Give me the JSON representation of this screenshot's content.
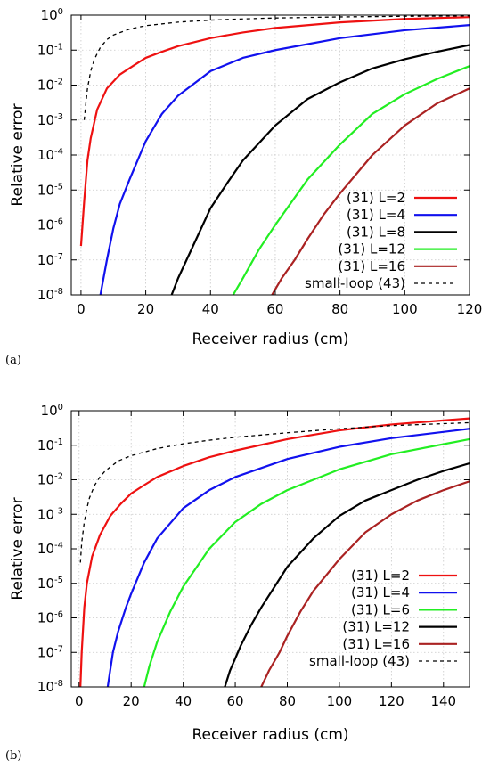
{
  "chart_data": [
    {
      "type": "line",
      "panel_label": "(a)",
      "xlabel": "Receiver radius (cm)",
      "ylabel": "Relative error",
      "xlim": [
        -3,
        120
      ],
      "ylim": [
        1e-08,
        1
      ],
      "yscale": "log",
      "xticks": [
        "0",
        "20",
        "40",
        "60",
        "80",
        "100",
        "120"
      ],
      "xtick_values": [
        0,
        20,
        40,
        60,
        80,
        100,
        120
      ],
      "yticks": [
        {
          "value": 1e-08,
          "base": "10",
          "exp": "-8"
        },
        {
          "value": 1e-07,
          "base": "10",
          "exp": "-7"
        },
        {
          "value": 1e-06,
          "base": "10",
          "exp": "-6"
        },
        {
          "value": 1e-05,
          "base": "10",
          "exp": "-5"
        },
        {
          "value": 0.0001,
          "base": "10",
          "exp": "-4"
        },
        {
          "value": 0.001,
          "base": "10",
          "exp": "-3"
        },
        {
          "value": 0.01,
          "base": "10",
          "exp": "-2"
        },
        {
          "value": 0.1,
          "base": "10",
          "exp": "-1"
        },
        {
          "value": 1,
          "base": "10",
          "exp": "0"
        }
      ],
      "grid": true,
      "legend_position": "bottom-right",
      "series": [
        {
          "name": "(31)  L=2",
          "color": "#ee1111",
          "dashed": false,
          "x": [
            0,
            1,
            2,
            3,
            5,
            8,
            12,
            16,
            20,
            25,
            30,
            40,
            50,
            60,
            80,
            100,
            120
          ],
          "y": [
            2.5e-07,
            5e-06,
            7e-05,
            0.0003,
            0.002,
            0.008,
            0.02,
            0.035,
            0.06,
            0.09,
            0.13,
            0.22,
            0.32,
            0.43,
            0.62,
            0.78,
            0.88
          ]
        },
        {
          "name": "(31)  L=4",
          "color": "#1111ee",
          "dashed": false,
          "x": [
            6,
            8,
            10,
            12,
            15,
            20,
            25,
            30,
            40,
            50,
            60,
            80,
            100,
            120
          ],
          "y": [
            1e-08,
            1e-07,
            8e-07,
            4e-06,
            2e-05,
            0.00025,
            0.0015,
            0.005,
            0.025,
            0.06,
            0.1,
            0.22,
            0.37,
            0.52
          ]
        },
        {
          "name": "(31)  L=8",
          "color": "#000000",
          "dashed": false,
          "x": [
            28,
            30,
            35,
            40,
            45,
            50,
            60,
            70,
            80,
            90,
            100,
            110,
            120
          ],
          "y": [
            1e-08,
            3e-08,
            3e-07,
            3e-06,
            1.5e-05,
            7e-05,
            0.0007,
            0.004,
            0.012,
            0.03,
            0.055,
            0.09,
            0.14
          ]
        },
        {
          "name": "(31)  L=12",
          "color": "#22ee22",
          "dashed": false,
          "x": [
            47,
            50,
            55,
            60,
            70,
            80,
            90,
            100,
            110,
            120
          ],
          "y": [
            1e-08,
            3e-08,
            2e-07,
            1e-06,
            2e-05,
            0.0002,
            0.0015,
            0.0055,
            0.015,
            0.035
          ]
        },
        {
          "name": "(31)  L=16",
          "color": "#aa2222",
          "dashed": false,
          "x": [
            59,
            62,
            66,
            70,
            75,
            80,
            90,
            100,
            110,
            120
          ],
          "y": [
            1e-08,
            3e-08,
            1e-07,
            4e-07,
            2e-06,
            8e-06,
            0.0001,
            0.0007,
            0.003,
            0.008
          ]
        },
        {
          "name": "small-loop (43)",
          "color": "#000000",
          "dashed": true,
          "x": [
            1,
            1.5,
            2,
            3,
            4,
            5,
            6,
            8,
            10,
            15,
            20,
            30,
            40,
            50,
            60,
            80,
            100,
            120
          ],
          "y": [
            0.001,
            0.003,
            0.008,
            0.025,
            0.05,
            0.08,
            0.12,
            0.2,
            0.27,
            0.4,
            0.5,
            0.63,
            0.72,
            0.78,
            0.83,
            0.89,
            0.93,
            0.95
          ]
        }
      ]
    },
    {
      "type": "line",
      "panel_label": "(b)",
      "xlabel": "Receiver radius (cm)",
      "ylabel": "Relative error",
      "xlim": [
        -3,
        150
      ],
      "ylim": [
        1e-08,
        1
      ],
      "yscale": "log",
      "xticks": [
        "0",
        "20",
        "40",
        "60",
        "80",
        "100",
        "120",
        "140"
      ],
      "xtick_values": [
        0,
        20,
        40,
        60,
        80,
        100,
        120,
        140
      ],
      "yticks": [
        {
          "value": 1e-08,
          "base": "10",
          "exp": "-8"
        },
        {
          "value": 1e-07,
          "base": "10",
          "exp": "-7"
        },
        {
          "value": 1e-06,
          "base": "10",
          "exp": "-6"
        },
        {
          "value": 1e-05,
          "base": "10",
          "exp": "-5"
        },
        {
          "value": 0.0001,
          "base": "10",
          "exp": "-4"
        },
        {
          "value": 0.001,
          "base": "10",
          "exp": "-3"
        },
        {
          "value": 0.01,
          "base": "10",
          "exp": "-2"
        },
        {
          "value": 0.1,
          "base": "10",
          "exp": "-1"
        },
        {
          "value": 1,
          "base": "10",
          "exp": "0"
        }
      ],
      "grid": true,
      "legend_position": "bottom-right",
      "series": [
        {
          "name": "(31) L=2",
          "color": "#ee1111",
          "dashed": false,
          "x": [
            0.5,
            1,
            2,
            3,
            5,
            8,
            12,
            16,
            20,
            25,
            30,
            40,
            50,
            60,
            80,
            100,
            120,
            150
          ],
          "y": [
            1e-08,
            1e-07,
            2e-06,
            1e-05,
            6e-05,
            0.00025,
            0.0009,
            0.002,
            0.004,
            0.007,
            0.012,
            0.025,
            0.045,
            0.07,
            0.15,
            0.27,
            0.4,
            0.6
          ]
        },
        {
          "name": "(31) L=4",
          "color": "#1111ee",
          "dashed": false,
          "x": [
            11,
            13,
            15,
            18,
            20,
            25,
            30,
            40,
            50,
            60,
            80,
            100,
            120,
            150
          ],
          "y": [
            1e-08,
            1e-07,
            4e-07,
            2e-06,
            5e-06,
            4e-05,
            0.0002,
            0.0015,
            0.005,
            0.012,
            0.04,
            0.09,
            0.16,
            0.3
          ]
        },
        {
          "name": "(31) L=6",
          "color": "#22ee22",
          "dashed": false,
          "x": [
            25,
            27,
            30,
            35,
            40,
            50,
            60,
            70,
            80,
            100,
            120,
            150
          ],
          "y": [
            1e-08,
            4e-08,
            2e-07,
            1.5e-06,
            8e-06,
            0.0001,
            0.0006,
            0.002,
            0.005,
            0.02,
            0.055,
            0.15
          ]
        },
        {
          "name": "(31) L=12",
          "color": "#000000",
          "dashed": false,
          "x": [
            56,
            58,
            62,
            66,
            70,
            80,
            90,
            100,
            110,
            120,
            130,
            140,
            150
          ],
          "y": [
            1e-08,
            3e-08,
            1.5e-07,
            6e-07,
            2e-06,
            3e-05,
            0.0002,
            0.0009,
            0.0025,
            0.005,
            0.01,
            0.018,
            0.03
          ]
        },
        {
          "name": "(31) L=16",
          "color": "#aa2222",
          "dashed": false,
          "x": [
            70,
            73,
            77,
            80,
            85,
            90,
            100,
            110,
            120,
            130,
            140,
            150
          ],
          "y": [
            1e-08,
            3e-08,
            1e-07,
            3e-07,
            1.5e-06,
            6e-06,
            5e-05,
            0.0003,
            0.001,
            0.0025,
            0.005,
            0.009
          ]
        },
        {
          "name": "small-loop (43)",
          "color": "#000000",
          "dashed": true,
          "x": [
            0.5,
            1,
            2,
            3,
            4,
            6,
            8,
            10,
            15,
            20,
            30,
            40,
            50,
            60,
            80,
            100,
            120,
            150
          ],
          "y": [
            4e-05,
            0.00015,
            0.0006,
            0.0015,
            0.003,
            0.007,
            0.012,
            0.018,
            0.035,
            0.05,
            0.08,
            0.11,
            0.14,
            0.17,
            0.23,
            0.3,
            0.37,
            0.45
          ]
        }
      ]
    }
  ]
}
